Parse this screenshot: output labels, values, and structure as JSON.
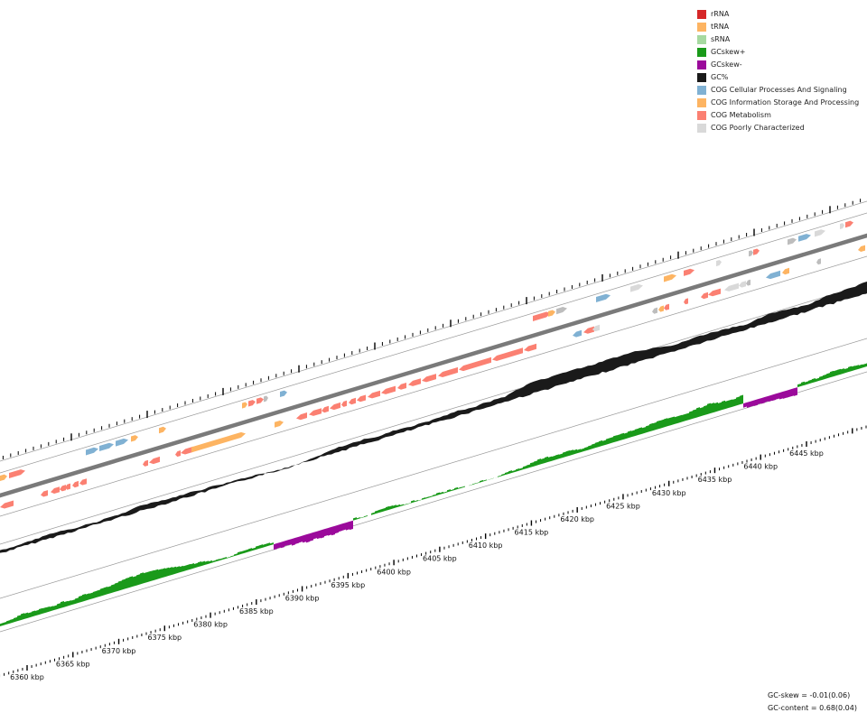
{
  "legend": [
    {
      "label": "rRNA",
      "color": "#d62728"
    },
    {
      "label": "tRNA",
      "color": "#fdb462"
    },
    {
      "label": "sRNA",
      "color": "#a6d9a0"
    },
    {
      "label": "GCskew+",
      "color": "#1a9a1a"
    },
    {
      "label": "GCskew-",
      "color": "#9b0a9b"
    },
    {
      "label": "GC%",
      "color": "#1a1a1a"
    },
    {
      "label": "COG Cellular Processes And Signaling",
      "color": "#80b1d3"
    },
    {
      "label": "COG Information Storage And Processing",
      "color": "#fdb462"
    },
    {
      "label": "COG Metabolism",
      "color": "#fb8072"
    },
    {
      "label": "COG Poorly Characterized",
      "color": "#d9d9d9"
    }
  ],
  "ticks": [
    "6360 kbp",
    "6365 kbp",
    "6370 kbp",
    "6375 kbp",
    "6380 kbp",
    "6385 kbp",
    "6390 kbp",
    "6395 kbp",
    "6400 kbp",
    "6405 kbp",
    "6410 kbp",
    "6415 kbp",
    "6420 kbp",
    "6425 kbp",
    "6430 kbp",
    "6435 kbp",
    "6440 kbp",
    "6445 kbp"
  ],
  "stats": {
    "gc_skew": "GC-skew = -0.01(0.06)",
    "gc_content": "GC-content = 0.68(0.04)"
  }
}
